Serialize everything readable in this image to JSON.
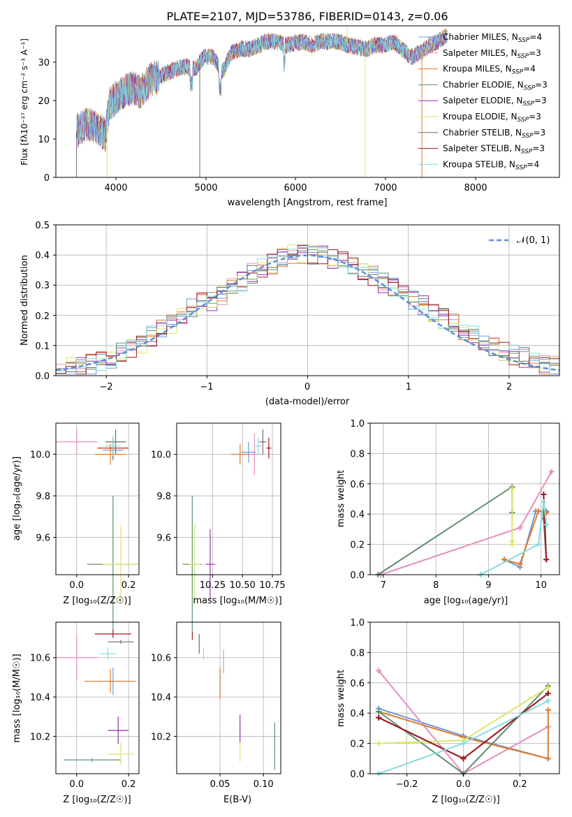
{
  "colors": {
    "chabrier_miles": "#6a9ae0",
    "salpeter_miles": "#e58dc1",
    "kroupa_miles": "#e07b2a",
    "chabrier_elodie": "#5f8f6f",
    "salpeter_elodie": "#9b2fb0",
    "kroupa_elodie": "#d8e66a",
    "chabrier_stelib": "#6b6b6b",
    "salpeter_stelib": "#a01a1a",
    "kroupa_stelib": "#86dce0",
    "normal": "#5b8ed8",
    "grid": "#b0b0b0"
  },
  "spectrum": {
    "title": "PLATE=2107, MJD=53786, FIBERID=0143, z=0.06",
    "xlabel": "wavelength [Angstrom, rest frame]",
    "ylabel": "Flux [fλ10⁻¹⁷ erg cm⁻² s⁻¹ A⁻¹]",
    "xticks": [
      "4000",
      "5000",
      "6000",
      "7000",
      "8000"
    ],
    "yticks": [
      "0",
      "10",
      "20",
      "30"
    ],
    "legend": [
      "Chabrier MILES, N_SSP=4",
      "Salpeter MILES, N_SSP=3",
      "Kroupa MILES, N_SSP=4",
      "Chabrier ELODIE, N_SSP=3",
      "Salpeter ELODIE, N_SSP=3",
      "Kroupa ELODIE, N_SSP=3",
      "Chabrier STELIB, N_SSP=3",
      "Salpeter STELIB, N_SSP=3",
      "Kroupa STELIB, N_SSP=4"
    ]
  },
  "residuals": {
    "xlabel": "(data-model)/error",
    "ylabel": "Normed distribution",
    "xticks": [
      "−2",
      "−1",
      "0",
      "1",
      "2"
    ],
    "yticks": [
      "0.0",
      "0.1",
      "0.2",
      "0.3",
      "0.4",
      "0.5"
    ],
    "legend": "𝒩(0, 1)"
  },
  "panel_age_z": {
    "xlabel": "Z [log₁₀(Z/Z☉)]",
    "ylabel": "age  [log₁₀(age/yr)]",
    "xticks": [
      "0.0",
      "0.2"
    ],
    "yticks": [
      "9.6",
      "9.8",
      "10.0"
    ]
  },
  "panel_age_mass": {
    "xlabel": "mass [log₁₀(M/M☉)]",
    "xticks": [
      "10.25",
      "10.50",
      "10.75"
    ],
    "yticks": [
      "9.6",
      "9.8",
      "10.0"
    ]
  },
  "panel_weight_age": {
    "xlabel": "age  [log₁₀(age/yr)]",
    "ylabel": "mass weight",
    "xticks": [
      "7",
      "8",
      "9",
      "10"
    ],
    "yticks": [
      "0.0",
      "0.2",
      "0.4",
      "0.6",
      "0.8",
      "1.0"
    ]
  },
  "panel_mass_z": {
    "xlabel": "Z [log₁₀(Z/Z☉)]",
    "ylabel": "mass [log₁₀(M/M☉)]",
    "xticks": [
      "0.0",
      "0.2"
    ],
    "yticks": [
      "10.2",
      "10.4",
      "10.6"
    ]
  },
  "panel_mass_ebv": {
    "xlabel": "E(B-V)",
    "xticks": [
      "0.05",
      "0.10"
    ],
    "yticks": [
      "10.2",
      "10.4",
      "10.6"
    ]
  },
  "panel_weight_z": {
    "xlabel": "Z [log₁₀(Z/Z☉)]",
    "ylabel": "mass weight",
    "xticks": [
      "−0.2",
      "0.0",
      "0.2"
    ],
    "yticks": [
      "0.0",
      "0.2",
      "0.4",
      "0.6",
      "0.8",
      "1.0"
    ]
  },
  "chart_data": [
    {
      "type": "line",
      "title": "PLATE=2107, MJD=53786, FIBERID=0143, z=0.06",
      "xlabel": "wavelength [Angstrom, rest frame]",
      "ylabel": "Flux [fλ10⁻¹⁷ erg cm⁻² s⁻¹ A⁻¹]",
      "xlim": [
        3350,
        8950
      ],
      "ylim": [
        0,
        39
      ],
      "legend_position": "upper-right",
      "x": [
        3580,
        3700,
        3800,
        3900,
        3950,
        4000,
        4100,
        4200,
        4300,
        4400,
        4500,
        4600,
        4700,
        4800,
        4900,
        5000,
        5100,
        5200,
        5300,
        5400,
        5500,
        5600,
        5700,
        5800,
        5900,
        6000,
        6100,
        6200,
        6300,
        6400,
        6500,
        6600,
        6700,
        6800,
        6900,
        7000,
        7100,
        7200,
        7300,
        7400,
        7500,
        7600,
        7700
      ],
      "y": [
        12,
        14,
        13,
        11,
        19,
        20,
        22,
        23,
        22,
        25,
        26,
        27,
        28,
        28.5,
        28,
        31,
        31,
        27,
        32,
        33,
        33,
        34,
        35,
        35,
        34,
        34.5,
        35,
        34,
        35,
        35,
        35,
        34,
        33.5,
        33,
        34,
        34,
        35,
        33,
        31,
        32,
        34,
        35,
        36.5
      ],
      "series": [
        {
          "name": "Chabrier MILES, N_SSP=4"
        },
        {
          "name": "Salpeter MILES, N_SSP=3"
        },
        {
          "name": "Kroupa MILES, N_SSP=4"
        },
        {
          "name": "Chabrier ELODIE, N_SSP=3"
        },
        {
          "name": "Salpeter ELODIE, N_SSP=3"
        },
        {
          "name": "Kroupa ELODIE, N_SSP=3"
        },
        {
          "name": "Chabrier STELIB, N_SSP=3"
        },
        {
          "name": "Salpeter STELIB, N_SSP=3"
        },
        {
          "name": "Kroupa STELIB, N_SSP=4"
        }
      ]
    },
    {
      "type": "line",
      "xlabel": "(data-model)/error",
      "ylabel": "Normed distribution",
      "xlim": [
        -2.5,
        2.5
      ],
      "ylim": [
        0,
        0.5
      ],
      "grid": true,
      "legend_position": "upper-right",
      "series": [
        {
          "name": "𝒩(0, 1)",
          "style": "dashed"
        }
      ],
      "histogram_bins": [
        -2.5,
        -2.4,
        -2.3,
        -2.2,
        -2.1,
        -2.0,
        -1.9,
        -1.8,
        -1.7,
        -1.6,
        -1.5,
        -1.4,
        -1.3,
        -1.2,
        -1.1,
        -1.0,
        -0.9,
        -0.8,
        -0.7,
        -0.6,
        -0.5,
        -0.4,
        -0.3,
        -0.2,
        -0.1,
        0.0,
        0.1,
        0.2,
        0.3,
        0.4,
        0.5,
        0.6,
        0.7,
        0.8,
        0.9,
        1.0,
        1.1,
        1.2,
        1.3,
        1.4,
        1.5,
        1.6,
        1.7,
        1.8,
        1.9,
        2.0,
        2.1,
        2.2,
        2.3,
        2.4
      ],
      "histogram_densities": [
        0.02,
        0.025,
        0.03,
        0.04,
        0.05,
        0.06,
        0.075,
        0.09,
        0.1,
        0.13,
        0.15,
        0.17,
        0.19,
        0.22,
        0.24,
        0.25,
        0.27,
        0.29,
        0.31,
        0.34,
        0.36,
        0.37,
        0.39,
        0.4,
        0.4,
        0.4,
        0.4,
        0.39,
        0.38,
        0.36,
        0.35,
        0.33,
        0.31,
        0.29,
        0.27,
        0.25,
        0.23,
        0.21,
        0.19,
        0.17,
        0.15,
        0.13,
        0.11,
        0.1,
        0.08,
        0.07,
        0.06,
        0.05,
        0.04,
        0.03
      ]
    },
    {
      "type": "scatter",
      "xlabel": "Z [log₁₀(Z/Z☉)]",
      "ylabel": "age  [log₁₀(age/yr)]",
      "xlim": [
        -0.08,
        0.24
      ],
      "ylim": [
        9.42,
        10.15
      ],
      "grid": true,
      "points": [
        {
          "series": "Chabrier MILES, N_SSP=4",
          "x": 0.14,
          "y": 10.02
        },
        {
          "series": "Salpeter MILES, N_SSP=3",
          "x": 0.0,
          "y": 10.06
        },
        {
          "series": "Kroupa MILES, N_SSP=4",
          "x": 0.13,
          "y": 10.0
        },
        {
          "series": "Chabrier ELODIE, N_SSP=3",
          "x": 0.14,
          "y": 9.47
        },
        {
          "series": "Kroupa ELODIE, N_SSP=3",
          "x": 0.17,
          "y": 9.47
        },
        {
          "series": "Chabrier STELIB, N_SSP=3",
          "x": 0.15,
          "y": 10.06
        },
        {
          "series": "Salpeter STELIB, N_SSP=3",
          "x": 0.14,
          "y": 10.03
        },
        {
          "series": "Kroupa STELIB, N_SSP=4",
          "x": 0.14,
          "y": 10.04
        }
      ]
    },
    {
      "type": "scatter",
      "xlabel": "mass [log₁₀(M/M☉)]",
      "xlim": [
        9.95,
        10.82
      ],
      "ylim": [
        9.42,
        10.15
      ],
      "grid": true,
      "points": [
        {
          "series": "Chabrier MILES, N_SSP=4",
          "x": 10.55,
          "y": 10.01
        },
        {
          "series": "Salpeter MILES, N_SSP=3",
          "x": 10.6,
          "y": 10.0
        },
        {
          "series": "Kroupa MILES, N_SSP=4",
          "x": 10.48,
          "y": 10.0
        },
        {
          "series": "Chabrier ELODIE, N_SSP=3",
          "x": 10.08,
          "y": 9.47
        },
        {
          "series": "Salpeter ELODIE, N_SSP=3",
          "x": 10.23,
          "y": 9.47
        },
        {
          "series": "Kroupa ELODIE, N_SSP=3",
          "x": 10.1,
          "y": 9.47
        },
        {
          "series": "Chabrier STELIB, N_SSP=3",
          "x": 10.67,
          "y": 10.06
        },
        {
          "series": "Salpeter STELIB, N_SSP=3",
          "x": 10.72,
          "y": 10.03
        },
        {
          "series": "Kroupa STELIB, N_SSP=4",
          "x": 10.63,
          "y": 10.04
        }
      ]
    },
    {
      "type": "line",
      "xlabel": "age  [log₁₀(age/yr)]",
      "ylabel": "mass weight",
      "xlim": [
        6.75,
        10.35
      ],
      "ylim": [
        0,
        1
      ],
      "grid": true,
      "series": [
        {
          "name": "Chabrier MILES, N_SSP=4",
          "x": [
            9.3,
            9.6,
            9.9,
            10.1
          ],
          "y": [
            0.1,
            0.05,
            0.42,
            0.42
          ]
        },
        {
          "name": "Salpeter MILES, N_SSP=3",
          "x": [
            6.95,
            9.6,
            10.2
          ],
          "y": [
            0.0,
            0.31,
            0.68
          ]
        },
        {
          "name": "Kroupa MILES, N_SSP=4",
          "x": [
            9.3,
            9.6,
            9.95,
            10.1
          ],
          "y": [
            0.1,
            0.07,
            0.42,
            0.41
          ]
        },
        {
          "name": "Chabrier ELODIE, N_SSP=3",
          "x": [
            6.9,
            9.45,
            9.45
          ],
          "y": [
            0.0,
            0.58,
            0.41
          ]
        },
        {
          "name": "Kroupa ELODIE, N_SSP=3",
          "x": [
            9.45,
            9.45,
            9.45
          ],
          "y": [
            0.57,
            0.22,
            0.2
          ]
        },
        {
          "name": "Chabrier STELIB, N_SSP=3",
          "x": [
            10.05,
            10.05,
            10.1
          ],
          "y": [
            0.53,
            0.37,
            0.1
          ]
        },
        {
          "name": "Salpeter STELIB, N_SSP=3",
          "x": [
            10.05,
            10.1
          ],
          "y": [
            0.53,
            0.1
          ]
        },
        {
          "name": "Kroupa STELIB, N_SSP=4",
          "x": [
            8.85,
            9.95,
            10.05,
            10.1
          ],
          "y": [
            0.0,
            0.2,
            0.48,
            0.33
          ]
        }
      ]
    },
    {
      "type": "scatter",
      "xlabel": "Z [log₁₀(Z/Z☉)]",
      "ylabel": "mass [log₁₀(M/M☉)]",
      "xlim": [
        -0.08,
        0.24
      ],
      "ylim": [
        10.01,
        10.78
      ],
      "grid": true,
      "points": [
        {
          "series": "Chabrier MILES, N_SSP=4",
          "x": 0.14,
          "y": 10.48
        },
        {
          "series": "Salpeter MILES, N_SSP=3",
          "x": 0.0,
          "y": 10.6
        },
        {
          "series": "Kroupa MILES, N_SSP=4",
          "x": 0.13,
          "y": 10.48
        },
        {
          "series": "Chabrier ELODIE, N_SSP=3",
          "x": 0.06,
          "y": 10.08
        },
        {
          "series": "Salpeter ELODIE, N_SSP=3",
          "x": 0.16,
          "y": 10.23
        },
        {
          "series": "Kroupa ELODIE, N_SSP=3",
          "x": 0.17,
          "y": 10.11
        },
        {
          "series": "Chabrier STELIB, N_SSP=3",
          "x": 0.17,
          "y": 10.68
        },
        {
          "series": "Salpeter STELIB, N_SSP=3",
          "x": 0.14,
          "y": 10.72
        },
        {
          "series": "Kroupa STELIB, N_SSP=4",
          "x": 0.12,
          "y": 10.62
        }
      ]
    },
    {
      "type": "scatter",
      "xlabel": "E(B-V)",
      "xlim": [
        0.0,
        0.12
      ],
      "ylim": [
        10.01,
        10.78
      ],
      "grid": true,
      "points": [
        {
          "series": "Chabrier MILES, N_SSP=4",
          "x": 0.05,
          "y": 10.48
        },
        {
          "series": "Salpeter MILES, N_SSP=3",
          "x": 0.054,
          "y": 10.58
        },
        {
          "series": "Kroupa MILES, N_SSP=4",
          "x": 0.05,
          "y": 10.47
        },
        {
          "series": "Chabrier ELODIE, N_SSP=3",
          "x": 0.113,
          "y": 10.15
        },
        {
          "series": "Salpeter ELODIE, N_SSP=3",
          "x": 0.073,
          "y": 10.24
        },
        {
          "series": "Kroupa ELODIE, N_SSP=3",
          "x": 0.073,
          "y": 10.12
        },
        {
          "series": "Chabrier STELIB, N_SSP=3",
          "x": 0.026,
          "y": 10.67
        },
        {
          "series": "Salpeter STELIB, N_SSP=3",
          "x": 0.018,
          "y": 10.71
        },
        {
          "series": "Kroupa STELIB, N_SSP=4",
          "x": 0.031,
          "y": 10.62
        }
      ]
    },
    {
      "type": "line",
      "xlabel": "Z [log₁₀(Z/Z☉)]",
      "ylabel": "mass weight",
      "xlim": [
        -0.33,
        0.34
      ],
      "ylim": [
        0,
        1
      ],
      "grid": true,
      "series": [
        {
          "name": "Chabrier MILES, N_SSP=4",
          "x": [
            -0.3,
            0.0,
            0.3
          ],
          "y": [
            0.43,
            0.25,
            0.1
          ]
        },
        {
          "name": "Salpeter MILES, N_SSP=3",
          "x": [
            -0.3,
            0.0,
            0.3
          ],
          "y": [
            0.68,
            0.0,
            0.31
          ]
        },
        {
          "name": "Kroupa MILES, N_SSP=4",
          "x": [
            -0.3,
            0.0,
            0.3,
            0.3
          ],
          "y": [
            0.41,
            0.24,
            0.1,
            0.42
          ]
        },
        {
          "name": "Chabrier ELODIE, N_SSP=3",
          "x": [
            -0.3,
            0.0,
            0.3
          ],
          "y": [
            0.41,
            0.0,
            0.58
          ]
        },
        {
          "name": "Salpeter ELODIE, N_SSP=3",
          "x": [
            0.0
          ],
          "y": [
            0.1
          ]
        },
        {
          "name": "Kroupa ELODIE, N_SSP=3",
          "x": [
            -0.3,
            0.0,
            0.3
          ],
          "y": [
            0.2,
            0.22,
            0.57
          ]
        },
        {
          "name": "Chabrier STELIB, N_SSP=3",
          "x": [
            -0.3,
            0.0,
            0.3
          ],
          "y": [
            0.37,
            0.1,
            0.53
          ]
        },
        {
          "name": "Salpeter STELIB, N_SSP=3",
          "x": [
            -0.3,
            0.0,
            0.3
          ],
          "y": [
            0.37,
            0.1,
            0.53
          ]
        },
        {
          "name": "Kroupa STELIB, N_SSP=4",
          "x": [
            -0.3,
            0.0,
            0.3
          ],
          "y": [
            0.0,
            0.2,
            0.48
          ]
        }
      ]
    }
  ]
}
